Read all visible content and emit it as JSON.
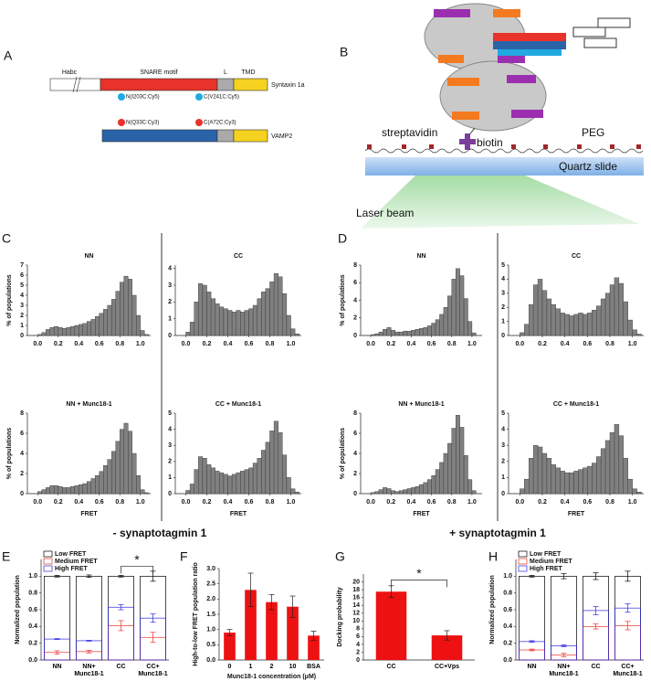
{
  "figure": {
    "panel_labels": [
      "A",
      "B",
      "C",
      "D",
      "E",
      "F",
      "G",
      "H"
    ],
    "section_labels": [
      "- synaptotagmin 1",
      "+ synaptotagmin 1"
    ]
  },
  "diagram_a": {
    "domains": [
      "Habc",
      "SNARE motif",
      "L",
      "TMD"
    ],
    "proteins": [
      "Syntaxin 1a",
      "VAMP2"
    ],
    "syntaxin_sites": [
      "N(I203C:Cy5)",
      "C(V241C:Cy5)"
    ],
    "vamp_sites": [
      "N(Q33C:Cy3)",
      "C(A72C:Cy3)"
    ]
  },
  "diagram_b": {
    "labels": [
      "streptavidin",
      "biotin",
      "PEG",
      "Quartz slide",
      "Laser beam"
    ]
  },
  "chart_data": [
    {
      "type": "histogram",
      "title": "NN",
      "ylabel": "% of populations",
      "color": "#808080",
      "bins": [
        -0.04,
        0,
        0.04,
        0.08,
        0.12,
        0.16,
        0.2,
        0.24,
        0.28,
        0.32,
        0.36,
        0.4,
        0.44,
        0.48,
        0.52,
        0.56,
        0.6,
        0.64,
        0.68,
        0.72,
        0.76,
        0.8,
        0.84,
        0.88,
        0.92,
        0.96,
        1,
        1.04,
        1.08
      ],
      "values": [
        0,
        0.1,
        0.3,
        0.6,
        0.8,
        0.9,
        0.8,
        0.7,
        0.8,
        0.9,
        1.0,
        1.1,
        1.2,
        1.4,
        1.6,
        1.9,
        2.2,
        2.6,
        3.0,
        3.6,
        4.4,
        5.3,
        5.9,
        5.6,
        4.0,
        2.0,
        0.5,
        0.1
      ],
      "xlim": [
        -0.1,
        1.1
      ],
      "xticks": [
        {
          "value": 0,
          "label": "0.0"
        },
        0.2,
        0.4,
        0.6,
        0.8,
        {
          "value": 1,
          "label": "1.0"
        }
      ],
      "ylim": [
        0,
        7
      ],
      "yticks": [
        0,
        1,
        2,
        3,
        4,
        5,
        6,
        7
      ]
    },
    {
      "type": "histogram",
      "title": "CC",
      "color": "#808080",
      "bins": [
        -0.04,
        0,
        0.04,
        0.08,
        0.12,
        0.16,
        0.2,
        0.24,
        0.28,
        0.32,
        0.36,
        0.4,
        0.44,
        0.48,
        0.52,
        0.56,
        0.6,
        0.64,
        0.68,
        0.72,
        0.76,
        0.8,
        0.84,
        0.88,
        0.92,
        0.96,
        1,
        1.04,
        1.08
      ],
      "values": [
        0,
        0.2,
        0.8,
        2.0,
        3.1,
        3.0,
        2.6,
        2.2,
        1.9,
        1.7,
        1.6,
        1.5,
        1.4,
        1.5,
        1.4,
        1.5,
        1.6,
        1.8,
        2.2,
        2.6,
        2.8,
        3.2,
        3.7,
        3.5,
        2.5,
        1.2,
        0.4,
        0.1
      ],
      "xlim": [
        -0.1,
        1.1
      ],
      "xticks": [
        {
          "value": 0,
          "label": "0.0"
        },
        0.2,
        0.4,
        0.6,
        0.8,
        {
          "value": 1,
          "label": "1.0"
        }
      ],
      "ylim": [
        0,
        4.2
      ],
      "yticks": [
        0,
        1,
        2,
        3,
        4
      ]
    },
    {
      "type": "histogram",
      "title": "NN + Munc18-1",
      "ylabel": "% of populations",
      "xlabel": "FRET",
      "color": "#808080",
      "bins": [
        -0.04,
        0,
        0.04,
        0.08,
        0.12,
        0.16,
        0.2,
        0.24,
        0.28,
        0.32,
        0.36,
        0.4,
        0.44,
        0.48,
        0.52,
        0.56,
        0.6,
        0.64,
        0.68,
        0.72,
        0.76,
        0.8,
        0.84,
        0.88,
        0.92,
        0.96,
        1,
        1.04,
        1.08
      ],
      "values": [
        0,
        0.2,
        0.4,
        0.6,
        0.8,
        0.8,
        0.7,
        0.6,
        0.6,
        0.7,
        0.8,
        0.9,
        1.0,
        1.2,
        1.5,
        1.8,
        2.2,
        2.8,
        3.4,
        4.2,
        5.2,
        6.4,
        7.0,
        6.2,
        4.0,
        1.8,
        0.4,
        0.1
      ],
      "xlim": [
        -0.1,
        1.1
      ],
      "xticks": [
        {
          "value": 0,
          "label": "0.0"
        },
        0.2,
        0.4,
        0.6,
        0.8,
        {
          "value": 1,
          "label": "1.0"
        }
      ],
      "ylim": [
        0,
        8
      ],
      "yticks": [
        0,
        2,
        4,
        6,
        8
      ]
    },
    {
      "type": "histogram",
      "title": "CC + Munc18-1",
      "xlabel": "FRET",
      "color": "#808080",
      "bins": [
        -0.04,
        0,
        0.04,
        0.08,
        0.12,
        0.16,
        0.2,
        0.24,
        0.28,
        0.32,
        0.36,
        0.4,
        0.44,
        0.48,
        0.52,
        0.56,
        0.6,
        0.64,
        0.68,
        0.72,
        0.76,
        0.8,
        0.84,
        0.88,
        0.92,
        0.96,
        1,
        1.04,
        1.08
      ],
      "values": [
        0,
        0.2,
        0.6,
        1.5,
        2.3,
        2.2,
        1.8,
        1.6,
        1.4,
        1.3,
        1.2,
        1.1,
        1.2,
        1.3,
        1.4,
        1.5,
        1.6,
        1.9,
        2.2,
        2.7,
        3.2,
        3.9,
        4.5,
        3.8,
        2.4,
        1.0,
        0.3,
        0.1
      ],
      "xlim": [
        -0.1,
        1.1
      ],
      "xticks": [
        {
          "value": 0,
          "label": "0.0"
        },
        0.2,
        0.4,
        0.6,
        0.8,
        {
          "value": 1,
          "label": "1.0"
        }
      ],
      "ylim": [
        0,
        5
      ],
      "yticks": [
        0,
        1,
        2,
        3,
        4,
        5
      ]
    },
    {
      "type": "histogram",
      "title": "NN",
      "ylabel": "% of populations",
      "color": "#808080",
      "bins": [
        -0.04,
        0,
        0.04,
        0.08,
        0.12,
        0.16,
        0.2,
        0.24,
        0.28,
        0.32,
        0.36,
        0.4,
        0.44,
        0.48,
        0.52,
        0.56,
        0.6,
        0.64,
        0.68,
        0.72,
        0.76,
        0.8,
        0.84,
        0.88,
        0.92,
        0.96,
        1,
        1.04,
        1.08
      ],
      "values": [
        0,
        0.1,
        0.2,
        0.4,
        0.7,
        0.9,
        0.6,
        0.4,
        0.4,
        0.5,
        0.5,
        0.6,
        0.7,
        0.8,
        0.9,
        1.1,
        1.4,
        1.8,
        2.4,
        3.2,
        4.5,
        6.4,
        7.6,
        6.8,
        4.2,
        1.6,
        0.3,
        0
      ],
      "xlim": [
        -0.1,
        1.1
      ],
      "xticks": [
        {
          "value": 0,
          "label": "0.0"
        },
        0.2,
        0.4,
        0.6,
        0.8,
        {
          "value": 1,
          "label": "1.0"
        }
      ],
      "ylim": [
        0,
        8
      ],
      "yticks": [
        0,
        2,
        4,
        6,
        8
      ]
    },
    {
      "type": "histogram",
      "title": "CC",
      "color": "#808080",
      "bins": [
        -0.04,
        0,
        0.04,
        0.08,
        0.12,
        0.16,
        0.2,
        0.24,
        0.28,
        0.32,
        0.36,
        0.4,
        0.44,
        0.48,
        0.52,
        0.56,
        0.6,
        0.64,
        0.68,
        0.72,
        0.76,
        0.8,
        0.84,
        0.88,
        0.92,
        0.96,
        1,
        1.04,
        1.08
      ],
      "values": [
        0,
        0.2,
        0.8,
        2.2,
        3.6,
        4.0,
        3.2,
        2.6,
        2.2,
        1.9,
        1.6,
        1.5,
        1.4,
        1.5,
        1.6,
        1.5,
        1.6,
        1.8,
        2.1,
        2.6,
        3.0,
        3.6,
        4.1,
        3.7,
        2.4,
        1.1,
        0.4,
        0.1
      ],
      "xlim": [
        -0.1,
        1.1
      ],
      "xticks": [
        {
          "value": 0,
          "label": "0.0"
        },
        0.2,
        0.4,
        0.6,
        0.8,
        {
          "value": 1,
          "label": "1.0"
        }
      ],
      "ylim": [
        0,
        5
      ],
      "yticks": [
        0,
        1,
        2,
        3,
        4,
        5
      ]
    },
    {
      "type": "histogram",
      "title": "NN + Munc18-1",
      "ylabel": "% of populations",
      "xlabel": "FRET",
      "color": "#808080",
      "bins": [
        -0.04,
        0,
        0.04,
        0.08,
        0.12,
        0.16,
        0.2,
        0.24,
        0.28,
        0.32,
        0.36,
        0.4,
        0.44,
        0.48,
        0.52,
        0.56,
        0.6,
        0.64,
        0.68,
        0.72,
        0.76,
        0.8,
        0.84,
        0.88,
        0.92,
        0.96,
        1,
        1.04,
        1.08
      ],
      "values": [
        0,
        0.1,
        0.2,
        0.4,
        0.6,
        0.5,
        0.3,
        0.2,
        0.3,
        0.4,
        0.5,
        0.6,
        0.7,
        0.9,
        1.1,
        1.4,
        1.8,
        2.4,
        3.1,
        4.0,
        5.0,
        6.5,
        7.8,
        6.6,
        3.8,
        1.4,
        0.3,
        0
      ],
      "xlim": [
        -0.1,
        1.1
      ],
      "xticks": [
        {
          "value": 0,
          "label": "0.0"
        },
        0.2,
        0.4,
        0.6,
        0.8,
        {
          "value": 1,
          "label": "1.0"
        }
      ],
      "ylim": [
        0,
        8
      ],
      "yticks": [
        0,
        2,
        4,
        6,
        8
      ]
    },
    {
      "type": "histogram",
      "title": "CC + Munc18-1",
      "xlabel": "FRET",
      "color": "#808080",
      "bins": [
        -0.04,
        0,
        0.04,
        0.08,
        0.12,
        0.16,
        0.2,
        0.24,
        0.28,
        0.32,
        0.36,
        0.4,
        0.44,
        0.48,
        0.52,
        0.56,
        0.6,
        0.64,
        0.68,
        0.72,
        0.76,
        0.8,
        0.84,
        0.88,
        0.92,
        0.96,
        1,
        1.04,
        1.08
      ],
      "values": [
        0,
        0.3,
        0.9,
        2.2,
        3.0,
        2.9,
        2.5,
        2.2,
        1.8,
        1.6,
        1.4,
        1.3,
        1.3,
        1.4,
        1.5,
        1.6,
        1.7,
        1.9,
        2.3,
        2.8,
        3.3,
        3.8,
        4.3,
        3.6,
        2.2,
        0.9,
        0.3,
        0.1
      ],
      "xlim": [
        -0.1,
        1.1
      ],
      "xticks": [
        {
          "value": 0,
          "label": "0.0"
        },
        0.2,
        0.4,
        0.6,
        0.8,
        {
          "value": 1,
          "label": "1.0"
        }
      ],
      "ylim": [
        0,
        5
      ],
      "yticks": [
        0,
        1,
        2,
        3,
        4,
        5
      ]
    },
    {
      "type": "bar",
      "ylabel": "Normalized population",
      "annotation": "*",
      "legend": "upper left",
      "categories": [
        "NN",
        "NN+ Munc18-1",
        "CC",
        "CC+ Munc18-1"
      ],
      "series": [
        {
          "name": "Low FRET",
          "color": "#000000",
          "values": [
            1,
            1,
            1,
            1
          ],
          "errors": [
            0.01,
            0.015,
            0.01,
            0.06
          ]
        },
        {
          "name": "Medium FRET",
          "color": "#e8322a",
          "values": [
            0.09,
            0.1,
            0.41,
            0.27
          ],
          "errors": [
            0.02,
            0.015,
            0.06,
            0.06
          ]
        },
        {
          "name": "High FRET",
          "color": "#2a2ae0",
          "values": [
            0.25,
            0.23,
            0.63,
            0.5
          ],
          "errors": [
            0.005,
            0.005,
            0.03,
            0.05
          ]
        }
      ],
      "ylim": [
        0,
        1.2
      ],
      "yticks": [
        {
          "value": 0,
          "label": "0.0"
        },
        0.2,
        0.4,
        0.6,
        0.8,
        {
          "value": 1,
          "label": "1.0"
        }
      ]
    },
    {
      "type": "bar",
      "ylabel": "High-to-low FRET population ratio",
      "xlabel": "Munc18-1 concentration (μM)",
      "color": "#ee1111",
      "categories": [
        "0",
        "1",
        "2",
        "10",
        "BSA"
      ],
      "values": [
        0.9,
        2.3,
        1.9,
        1.75,
        0.8
      ],
      "errors": [
        0.1,
        0.55,
        0.25,
        0.35,
        0.15
      ],
      "ylim": [
        0,
        3
      ],
      "yticks": [
        {
          "value": 0,
          "label": "0.0"
        },
        0.5,
        {
          "value": 1,
          "label": "1.0"
        },
        1.5,
        {
          "value": 2,
          "label": "2.0"
        },
        2.5,
        {
          "value": 3,
          "label": "3.0"
        }
      ]
    },
    {
      "type": "bar",
      "ylabel": "Docking probability",
      "annotation": "*",
      "color": "#ee1111",
      "categories": [
        "CC",
        "CC+Vps"
      ],
      "values": [
        17.5,
        6.3
      ],
      "errors": [
        1.5,
        1.2
      ],
      "ylim": [
        0,
        22
      ],
      "yticks": [
        0,
        2,
        4,
        6,
        8,
        10,
        12,
        14,
        16,
        18,
        20
      ]
    },
    {
      "type": "bar",
      "ylabel": "Normalized population",
      "legend": "upper left",
      "categories": [
        "NN",
        "NN+ Munc18-1",
        "CC",
        "CC+ Munc18-1"
      ],
      "series": [
        {
          "name": "Low FRET",
          "color": "#000000",
          "values": [
            1,
            1,
            1,
            1
          ],
          "errors": [
            0.01,
            0.03,
            0.04,
            0.06
          ]
        },
        {
          "name": "Medium FRET",
          "color": "#e8322a",
          "values": [
            0.12,
            0.06,
            0.4,
            0.41
          ],
          "errors": [
            0.01,
            0.02,
            0.03,
            0.05
          ]
        },
        {
          "name": "High FRET",
          "color": "#2a2ae0",
          "values": [
            0.22,
            0.17,
            0.59,
            0.62
          ],
          "errors": [
            0.01,
            0.01,
            0.05,
            0.05
          ]
        }
      ],
      "ylim": [
        0,
        1.2
      ],
      "yticks": [
        {
          "value": 0,
          "label": "0.0"
        },
        0.2,
        0.4,
        0.6,
        0.8,
        {
          "value": 1,
          "label": "1.0"
        }
      ]
    }
  ]
}
